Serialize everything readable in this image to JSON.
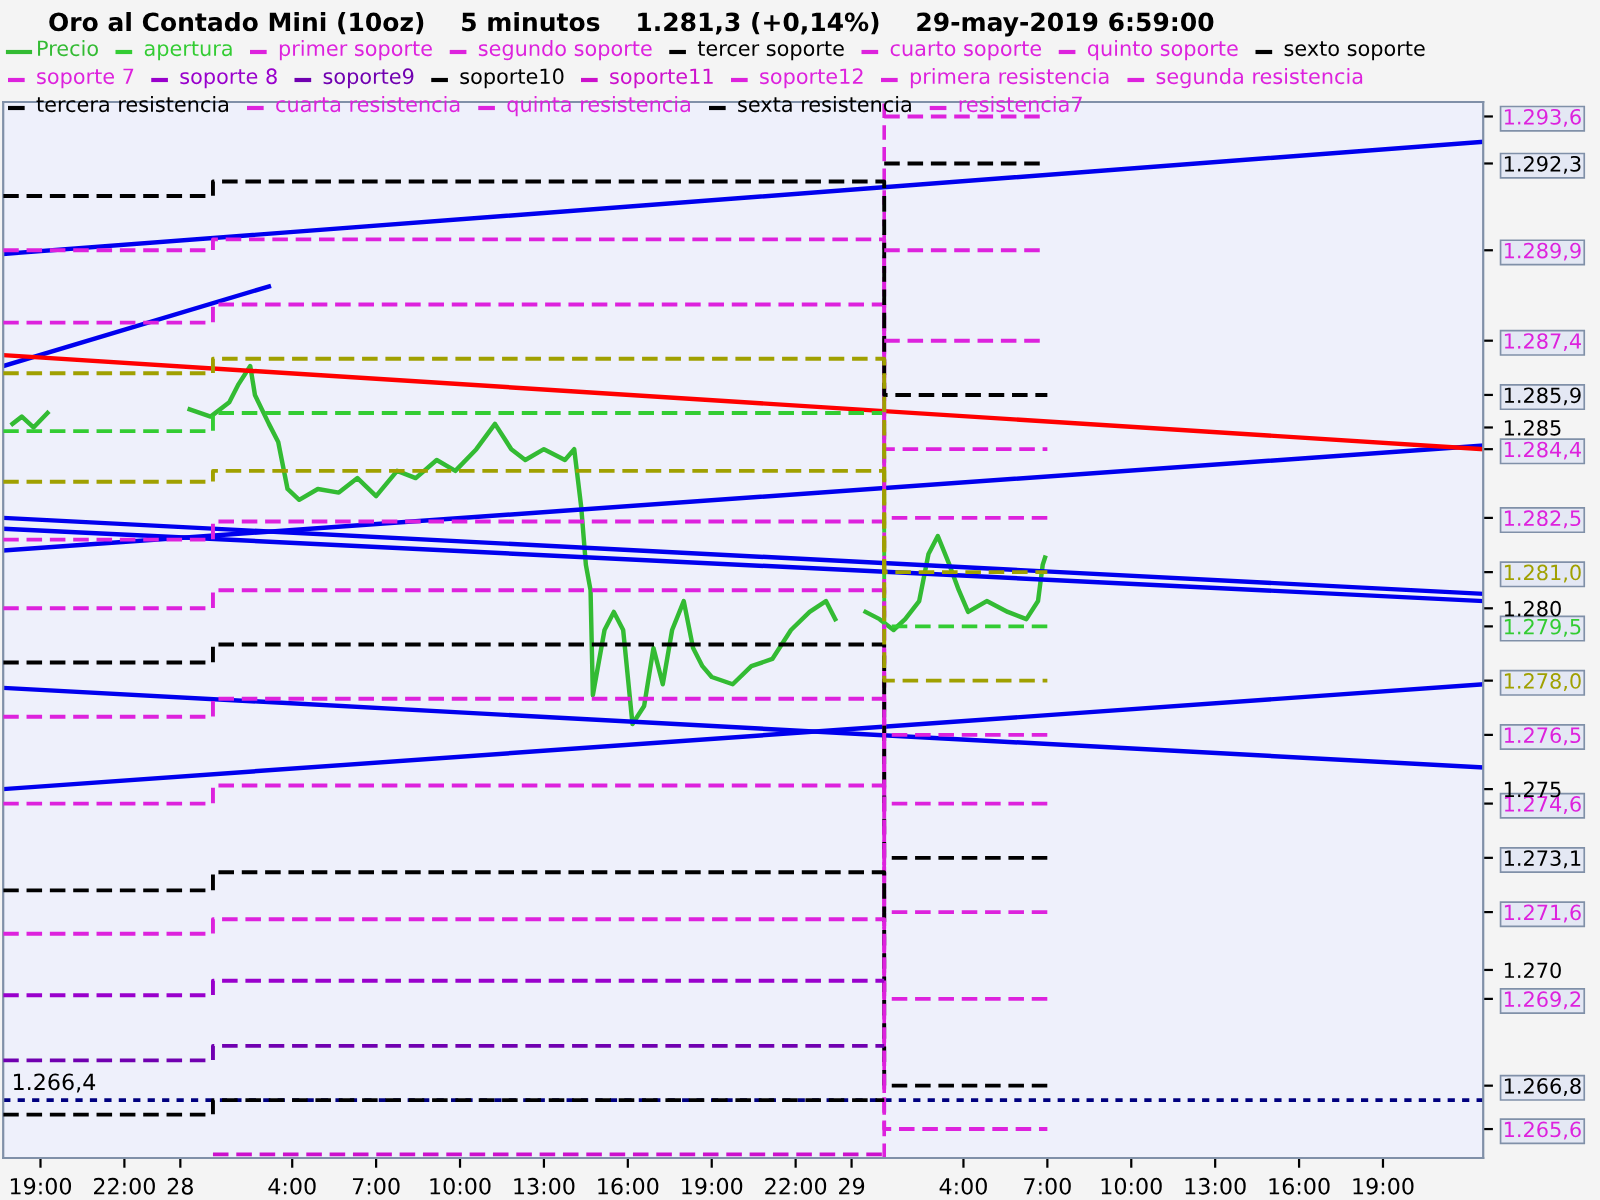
{
  "chart_data": {
    "type": "line",
    "title": "Oro al Contado Mini (10oz)    5 minutos    1.281,3 (+0,14%)    29-may-2019 6:59:00",
    "xlim": [
      "2019-05-27T17:40",
      "2019-05-29T22:35"
    ],
    "ylim": [
      1264.8,
      1294.0
    ],
    "xticks": [
      {
        "value": "2019-05-27T19:00",
        "label": "19:00"
      },
      {
        "value": "2019-05-27T22:00",
        "label": "22:00"
      },
      {
        "value": "2019-05-28T00:00",
        "label": "28"
      },
      {
        "value": "2019-05-28T04:00",
        "label": "4:00"
      },
      {
        "value": "2019-05-28T07:00",
        "label": "7:00"
      },
      {
        "value": "2019-05-28T10:00",
        "label": "10:00"
      },
      {
        "value": "2019-05-28T13:00",
        "label": "13:00"
      },
      {
        "value": "2019-05-28T16:00",
        "label": "16:00"
      },
      {
        "value": "2019-05-28T19:00",
        "label": "19:00"
      },
      {
        "value": "2019-05-28T22:00",
        "label": "22:00"
      },
      {
        "value": "2019-05-29T00:00",
        "label": "29"
      },
      {
        "value": "2019-05-29T04:00",
        "label": "4:00"
      },
      {
        "value": "2019-05-29T07:00",
        "label": "7:00"
      },
      {
        "value": "2019-05-29T10:00",
        "label": "10:00"
      },
      {
        "value": "2019-05-29T13:00",
        "label": "13:00"
      },
      {
        "value": "2019-05-29T16:00",
        "label": "16:00"
      },
      {
        "value": "2019-05-29T19:00",
        "label": "19:00"
      }
    ],
    "yticks": [
      {
        "value": 1265.6,
        "label": "1.265,6"
      },
      {
        "value": 1266.8,
        "label": "1.266,8"
      },
      {
        "value": 1269.2,
        "label": "1.269,2"
      },
      {
        "value": 1270,
        "label": "1.270"
      },
      {
        "value": 1271.6,
        "label": "1.271,6"
      },
      {
        "value": 1273.1,
        "label": "1.273,1"
      },
      {
        "value": 1274.6,
        "label": "1.274,6"
      },
      {
        "value": 1275,
        "label": "1.275"
      },
      {
        "value": 1276.5,
        "label": "1.276,5"
      },
      {
        "value": 1278.0,
        "label": "1.278,0"
      },
      {
        "value": 1279.5,
        "label": "1.279,5"
      },
      {
        "value": 1280,
        "label": "1.280"
      },
      {
        "value": 1281.0,
        "label": "1.281,0"
      },
      {
        "value": 1282.5,
        "label": "1.282,5"
      },
      {
        "value": 1284.4,
        "label": "1.284,4"
      },
      {
        "value": 1285,
        "label": "1.285"
      },
      {
        "value": 1285.9,
        "label": "1.285,9"
      },
      {
        "value": 1287.4,
        "label": "1.287,4"
      },
      {
        "value": 1289.9,
        "label": "1.289,9"
      },
      {
        "value": 1292.3,
        "label": "1.292,3"
      },
      {
        "value": 1293.6,
        "label": "1.293,6"
      }
    ],
    "grid": false,
    "legend": "top",
    "ref_lines": [
      {
        "axis": "y",
        "value": 1266.4,
        "label": "1.266,4",
        "color": "#000080",
        "line_style": "dotted"
      },
      {
        "axis": "x",
        "value": "2019-05-29T01:10",
        "color": "#dd22dd",
        "line_style": "dashed"
      }
    ],
    "series": [
      {
        "name": "Precio",
        "type": "line",
        "color": "#33bb33",
        "x": [
          "2019-05-27T18:00",
          "2019-05-27T18:20",
          "2019-05-27T18:45",
          "2019-05-27T19:15",
          "2019-05-27T20:00",
          "2019-05-28T00:20",
          "2019-05-28T01:05",
          "2019-05-28T01:45",
          "2019-05-28T02:05",
          "2019-05-28T02:30",
          "2019-05-28T02:40",
          "2019-05-28T03:10",
          "2019-05-28T03:30",
          "2019-05-28T03:50",
          "2019-05-28T04:15",
          "2019-05-28T04:55",
          "2019-05-28T05:40",
          "2019-05-28T06:20",
          "2019-05-28T07:00",
          "2019-05-28T07:45",
          "2019-05-28T08:25",
          "2019-05-28T09:10",
          "2019-05-28T09:50",
          "2019-05-28T10:35",
          "2019-05-28T11:15",
          "2019-05-28T11:50",
          "2019-05-28T12:20",
          "2019-05-28T13:00",
          "2019-05-28T13:45",
          "2019-05-28T14:05",
          "2019-05-28T14:20",
          "2019-05-28T14:30",
          "2019-05-28T14:40",
          "2019-05-28T14:45",
          "2019-05-28T15:10",
          "2019-05-28T15:30",
          "2019-05-28T15:50",
          "2019-05-28T16:10",
          "2019-05-28T16:35",
          "2019-05-28T16:55",
          "2019-05-28T17:15",
          "2019-05-28T17:35",
          "2019-05-28T18:00",
          "2019-05-28T18:20",
          "2019-05-28T18:40",
          "2019-05-28T19:00",
          "2019-05-28T19:45",
          "2019-05-28T20:25",
          "2019-05-28T21:10",
          "2019-05-28T21:50",
          "2019-05-28T22:30",
          "2019-05-28T23:05",
          "2019-05-28T23:25",
          "2019-05-29T00:00",
          "2019-05-29T00:30",
          "2019-05-29T01:00",
          "2019-05-29T01:30",
          "2019-05-29T01:55",
          "2019-05-29T02:25",
          "2019-05-29T02:45",
          "2019-05-29T03:05",
          "2019-05-29T03:30",
          "2019-05-29T03:50",
          "2019-05-29T04:10",
          "2019-05-29T04:50",
          "2019-05-29T05:35",
          "2019-05-29T06:15",
          "2019-05-29T06:40",
          "2019-05-29T06:50",
          "2019-05-29T06:55"
        ],
        "values": [
          1285.1,
          1285.3,
          1285.0,
          1285.4,
          null,
          1285.5,
          1285.3,
          1285.7,
          1286.2,
          1286.7,
          1285.9,
          1285.1,
          1284.6,
          1283.3,
          1283.0,
          1283.3,
          1283.2,
          1283.6,
          1283.1,
          1283.8,
          1283.6,
          1284.1,
          1283.8,
          1284.4,
          1285.1,
          1284.4,
          1284.1,
          1284.4,
          1284.1,
          1284.4,
          1282.8,
          1281.2,
          1280.5,
          1277.6,
          1279.4,
          1279.9,
          1279.4,
          1276.8,
          1277.3,
          1278.9,
          1277.9,
          1279.4,
          1280.2,
          1278.9,
          1278.4,
          1278.1,
          1277.9,
          1278.4,
          1278.6,
          1279.4,
          1279.9,
          1280.2,
          1279.7,
          null,
          1279.9,
          1279.7,
          1279.4,
          1279.7,
          1280.2,
          1281.5,
          1282.0,
          1281.2,
          1280.5,
          1279.9,
          1280.2,
          1279.9,
          1279.7,
          1280.2,
          1281.2,
          1281.4
        ]
      },
      {
        "name": "apertura",
        "type": "step",
        "line_style": "dashed",
        "color": "#33cc33",
        "x": [
          "2019-05-27T17:40",
          "2019-05-28T01:10",
          "2019-05-29T01:10",
          "2019-05-29T07:00"
        ],
        "values": [
          1284.9,
          1285.4,
          1279.5,
          1279.5
        ]
      },
      {
        "name": "primer soporte",
        "type": "step",
        "line_style": "dashed",
        "color": "#dd22dd",
        "x": [
          "2019-05-27T17:40",
          "2019-05-28T01:10",
          "2019-05-29T01:10",
          "2019-05-29T07:00"
        ],
        "values": [
          1281.9,
          1282.4,
          1276.5,
          1276.5
        ]
      },
      {
        "name": "segundo soporte",
        "type": "step",
        "line_style": "dashed",
        "color": "#dd22dd",
        "x": [
          "2019-05-27T17:40",
          "2019-05-28T01:10",
          "2019-05-29T01:10",
          "2019-05-29T07:00"
        ],
        "values": [
          1280.0,
          1280.5,
          1274.6,
          1274.6
        ]
      },
      {
        "name": "tercer soporte",
        "type": "step",
        "line_style": "dashed",
        "color": "#000000",
        "x": [
          "2019-05-27T17:40",
          "2019-05-28T01:10",
          "2019-05-29T01:10",
          "2019-05-29T07:00"
        ],
        "values": [
          1278.5,
          1279.0,
          1273.1,
          1273.1
        ]
      },
      {
        "name": "cuarto soporte",
        "type": "step",
        "line_style": "dashed",
        "color": "#dd22dd",
        "x": [
          "2019-05-27T17:40",
          "2019-05-28T01:10",
          "2019-05-29T01:10",
          "2019-05-29T07:00"
        ],
        "values": [
          1277.0,
          1277.5,
          1271.6,
          1271.6
        ]
      },
      {
        "name": "quinto soporte",
        "type": "step",
        "line_style": "dashed",
        "color": "#dd22dd",
        "x": [
          "2019-05-27T17:40",
          "2019-05-28T01:10",
          "2019-05-29T01:10",
          "2019-05-29T07:00"
        ],
        "values": [
          1274.6,
          1275.1,
          1269.2,
          1269.2
        ]
      },
      {
        "name": "sexto soporte",
        "type": "step",
        "line_style": "dashed",
        "color": "#000000",
        "x": [
          "2019-05-27T17:40",
          "2019-05-28T01:10",
          "2019-05-29T01:10",
          "2019-05-29T07:00"
        ],
        "values": [
          1272.2,
          1272.7,
          1266.8,
          1266.8
        ]
      },
      {
        "name": "soporte 7",
        "type": "step",
        "line_style": "dashed",
        "color": "#dd22dd",
        "x": [
          "2019-05-27T17:40",
          "2019-05-28T01:10",
          "2019-05-29T01:10",
          "2019-05-29T07:00"
        ],
        "values": [
          1271.0,
          1271.4,
          1265.6,
          1265.6
        ]
      },
      {
        "name": "soporte 8",
        "type": "step",
        "line_style": "dashed",
        "color": "#9900cc",
        "x": [
          "2019-05-27T17:40",
          "2019-05-28T01:10",
          "2019-05-29T01:10"
        ],
        "values": [
          1269.3,
          1269.7,
          1269.7
        ]
      },
      {
        "name": "soporte9",
        "type": "step",
        "line_style": "dashed",
        "color": "#7000b0",
        "x": [
          "2019-05-27T17:40",
          "2019-05-28T01:10",
          "2019-05-29T01:10"
        ],
        "values": [
          1267.5,
          1267.9,
          1267.9
        ]
      },
      {
        "name": "soporte10",
        "type": "step",
        "line_style": "dashed",
        "color": "#000000",
        "x": [
          "2019-05-27T17:40",
          "2019-05-28T01:10",
          "2019-05-29T01:10"
        ],
        "values": [
          1266.0,
          1266.4,
          1266.4
        ]
      },
      {
        "name": "soporte11",
        "type": "step",
        "line_style": "dashed",
        "color": "#cc11cc",
        "x": [
          "2019-05-28T01:10",
          "2019-05-29T01:10"
        ],
        "values": [
          1264.9,
          1264.9
        ]
      },
      {
        "name": "soporte12",
        "type": "step",
        "line_style": "dashed",
        "color": "#dd22dd"
      },
      {
        "name": "primera resistencia",
        "type": "step",
        "line_style": "dashed",
        "color": "#dd22dd",
        "x": [
          "2019-05-27T17:40",
          "2019-05-28T01:10",
          "2019-05-29T01:10",
          "2019-05-29T07:00"
        ],
        "values": [
          1287.9,
          1288.4,
          1282.5,
          1282.5
        ]
      },
      {
        "name": "segunda resistencia",
        "type": "step",
        "line_style": "dashed",
        "color": "#dd22dd",
        "x": [
          "2019-05-27T17:40",
          "2019-05-28T01:10",
          "2019-05-29T01:10",
          "2019-05-29T07:00"
        ],
        "values": [
          1289.9,
          1290.2,
          1284.4,
          1284.4
        ]
      },
      {
        "name": "tercera resistencia",
        "type": "step",
        "line_style": "dashed",
        "color": "#000000",
        "x": [
          "2019-05-27T17:40",
          "2019-05-28T01:10",
          "2019-05-29T01:10",
          "2019-05-29T07:00"
        ],
        "values": [
          1291.4,
          1291.8,
          1285.9,
          1285.9
        ]
      },
      {
        "name": "cuarta resistencia",
        "type": "step",
        "line_style": "dashed",
        "color": "#dd22dd",
        "x": [
          "2019-05-29T01:10",
          "2019-05-29T07:00"
        ],
        "values": [
          1287.4,
          1287.4
        ]
      },
      {
        "name": "quinta resistencia",
        "type": "step",
        "line_style": "dashed",
        "color": "#dd22dd",
        "x": [
          "2019-05-29T01:10",
          "2019-05-29T07:00"
        ],
        "values": [
          1289.9,
          1289.9
        ]
      },
      {
        "name": "sexta resistencia",
        "type": "step",
        "line_style": "dashed",
        "color": "#000000",
        "x": [
          "2019-05-29T01:10",
          "2019-05-29T07:00"
        ],
        "values": [
          1292.3,
          1292.3
        ]
      },
      {
        "name": "resistencia7",
        "type": "step",
        "line_style": "dashed",
        "color": "#dd22dd",
        "x": [
          "2019-05-29T01:10",
          "2019-05-29T07:00"
        ],
        "values": [
          1293.6,
          1293.6
        ]
      },
      {
        "type": "step",
        "line_style": "dashed",
        "color": "#a0a000",
        "x": [
          "2019-05-27T17:40",
          "2019-05-28T01:10",
          "2019-05-29T01:10",
          "2019-05-29T07:00"
        ],
        "values": [
          1286.5,
          1286.9,
          1281.0,
          1281.0
        ]
      },
      {
        "type": "step",
        "line_style": "dashed",
        "color": "#a0a000",
        "x": [
          "2019-05-27T17:40",
          "2019-05-28T01:10",
          "2019-05-29T01:10",
          "2019-05-29T07:00"
        ],
        "values": [
          1283.5,
          1283.8,
          1278.0,
          1278.0
        ]
      },
      {
        "type": "line",
        "color": "#0000ee",
        "x": [
          "2019-05-27T17:40",
          "2019-05-29T22:35"
        ],
        "values": [
          1289.8,
          1292.9
        ]
      },
      {
        "type": "line",
        "color": "#0000ee",
        "x": [
          "2019-05-27T17:40",
          "2019-05-28T03:10"
        ],
        "values": [
          1286.7,
          1288.9
        ]
      },
      {
        "type": "line",
        "color": "#0000ee",
        "x": [
          "2019-05-27T17:40",
          "2019-05-29T22:35"
        ],
        "values": [
          1281.6,
          1284.5
        ]
      },
      {
        "type": "line",
        "color": "#0000ee",
        "x": [
          "2019-05-27T17:40",
          "2019-05-29T22:35"
        ],
        "values": [
          1282.5,
          1280.4
        ]
      },
      {
        "type": "line",
        "color": "#0000ee",
        "x": [
          "2019-05-27T17:40",
          "2019-05-29T22:35"
        ],
        "values": [
          1282.2,
          1280.2
        ]
      },
      {
        "type": "line",
        "color": "#0000ee",
        "x": [
          "2019-05-27T17:40",
          "2019-05-29T22:35"
        ],
        "values": [
          1275.0,
          1277.9
        ]
      },
      {
        "type": "line",
        "color": "#0000ee",
        "x": [
          "2019-05-27T17:40",
          "2019-05-29T22:35"
        ],
        "values": [
          1277.8,
          1275.6
        ]
      },
      {
        "type": "line",
        "color": "#ff0000",
        "x": [
          "2019-05-27T17:40",
          "2019-05-29T22:35"
        ],
        "values": [
          1287.0,
          1284.4
        ]
      }
    ]
  }
}
